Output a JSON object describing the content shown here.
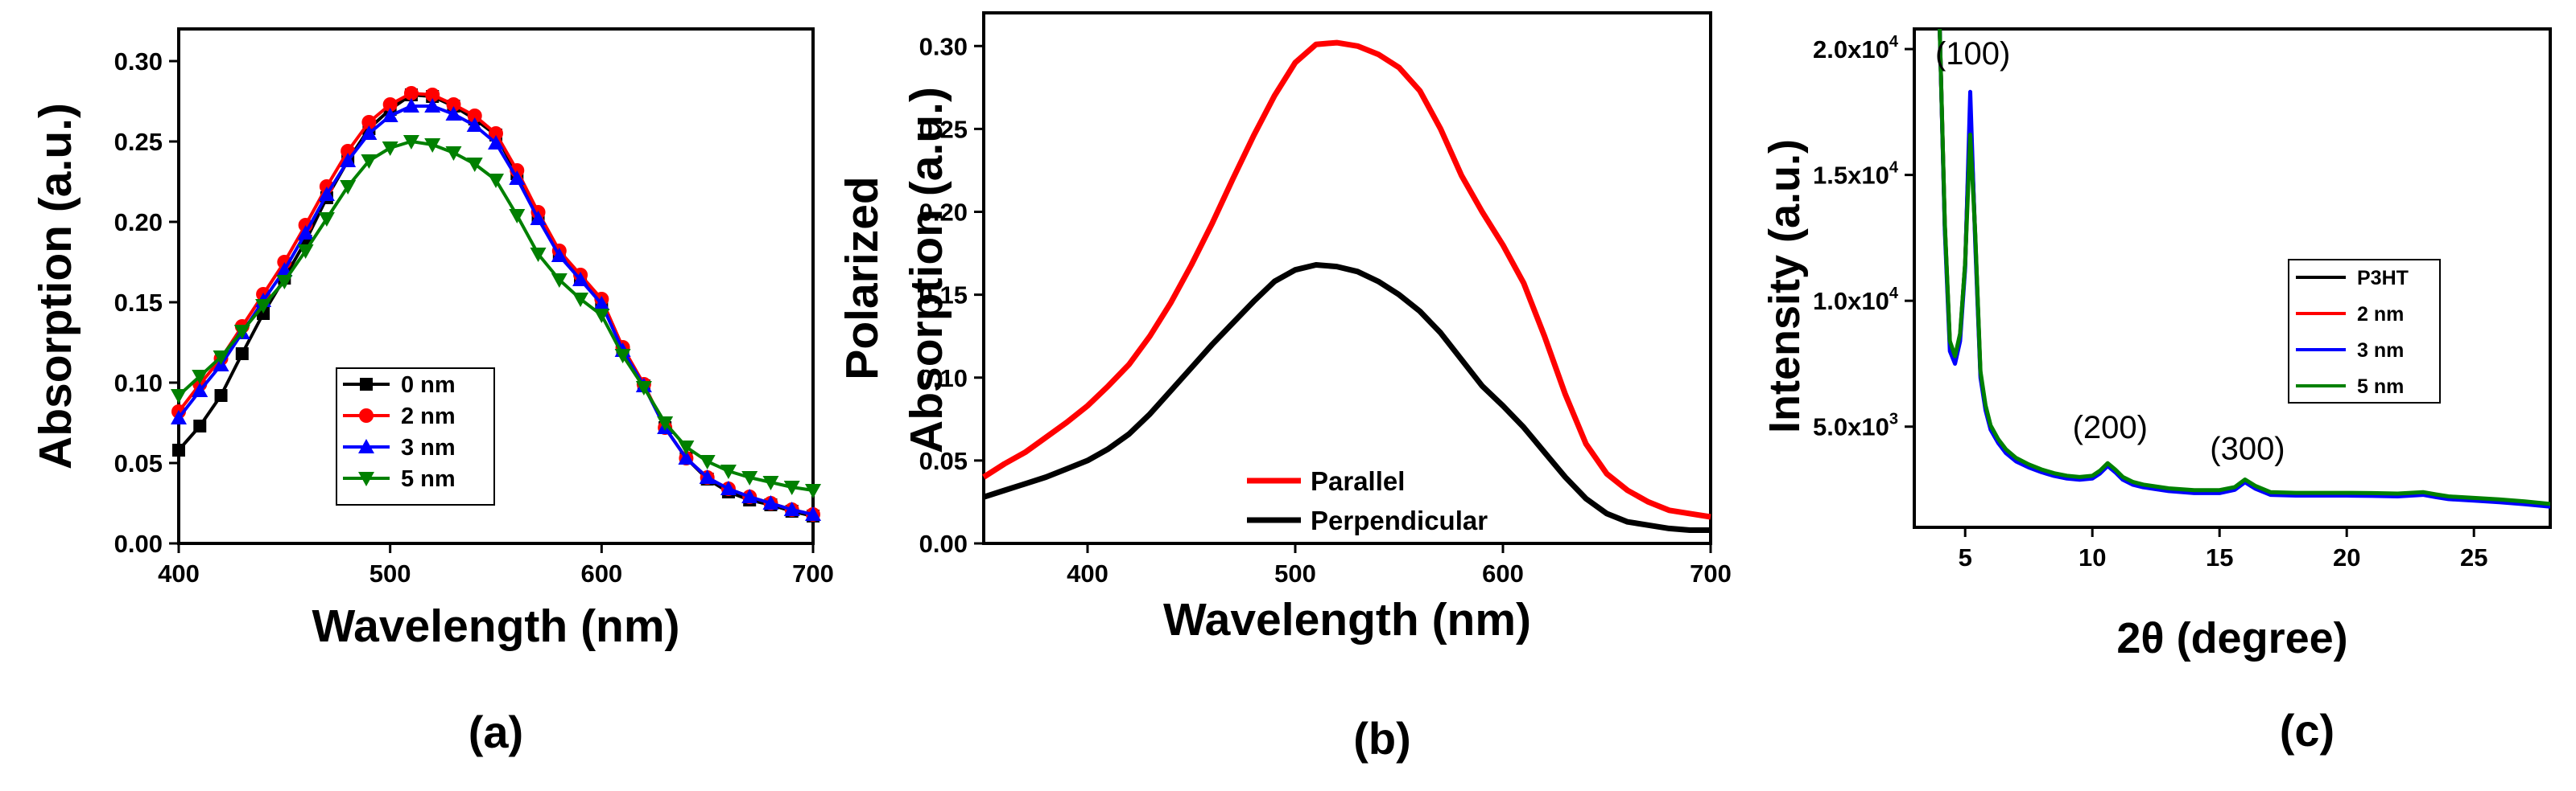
{
  "chart_data": [
    {
      "type": "line",
      "panel_label": "(a)",
      "xlabel": "Wavelength (nm)",
      "ylabel": "Absorption (a.u.)",
      "xlim": [
        400,
        700
      ],
      "ylim": [
        0,
        0.32
      ],
      "xticks": [
        400,
        500,
        600,
        700
      ],
      "xtick_labels": [
        "400",
        "500",
        "600",
        "700"
      ],
      "yticks": [
        0.0,
        0.05,
        0.1,
        0.15,
        0.2,
        0.25,
        0.3
      ],
      "ytick_labels": [
        "0.00",
        "0.05",
        "0.10",
        "0.15",
        "0.20",
        "0.25",
        "0.30"
      ],
      "legend_position": "lower-center",
      "x": [
        400,
        410,
        420,
        430,
        440,
        450,
        460,
        470,
        480,
        490,
        500,
        510,
        520,
        530,
        540,
        550,
        560,
        570,
        580,
        590,
        600,
        610,
        620,
        630,
        640,
        650,
        660,
        670,
        680,
        690,
        700
      ],
      "series": [
        {
          "name": "0 nm",
          "color": "#000000",
          "marker": "square",
          "values": [
            0.058,
            0.073,
            0.092,
            0.118,
            0.143,
            0.165,
            0.188,
            0.215,
            0.238,
            0.258,
            0.27,
            0.279,
            0.278,
            0.272,
            0.264,
            0.254,
            0.23,
            0.202,
            0.18,
            0.165,
            0.15,
            0.12,
            0.098,
            0.072,
            0.053,
            0.04,
            0.032,
            0.027,
            0.024,
            0.02,
            0.017
          ]
        },
        {
          "name": "2 nm",
          "color": "#ff0000",
          "marker": "circle",
          "values": [
            0.082,
            0.099,
            0.115,
            0.135,
            0.155,
            0.175,
            0.198,
            0.222,
            0.244,
            0.262,
            0.273,
            0.28,
            0.279,
            0.273,
            0.266,
            0.255,
            0.232,
            0.206,
            0.182,
            0.167,
            0.152,
            0.122,
            0.099,
            0.072,
            0.053,
            0.041,
            0.034,
            0.029,
            0.025,
            0.021,
            0.018
          ]
        },
        {
          "name": "3 nm",
          "color": "#0000ff",
          "marker": "triangle-up",
          "values": [
            0.078,
            0.095,
            0.111,
            0.131,
            0.151,
            0.17,
            0.193,
            0.217,
            0.238,
            0.255,
            0.266,
            0.272,
            0.272,
            0.267,
            0.26,
            0.249,
            0.227,
            0.202,
            0.179,
            0.164,
            0.149,
            0.12,
            0.098,
            0.072,
            0.053,
            0.041,
            0.034,
            0.029,
            0.025,
            0.021,
            0.018
          ]
        },
        {
          "name": "5 nm",
          "color": "#008000",
          "marker": "triangle-down",
          "values": [
            0.092,
            0.104,
            0.116,
            0.132,
            0.148,
            0.163,
            0.182,
            0.202,
            0.222,
            0.238,
            0.246,
            0.25,
            0.248,
            0.243,
            0.236,
            0.226,
            0.204,
            0.18,
            0.164,
            0.152,
            0.142,
            0.117,
            0.097,
            0.075,
            0.06,
            0.051,
            0.045,
            0.041,
            0.038,
            0.035,
            0.033
          ]
        }
      ]
    },
    {
      "type": "line",
      "panel_label": "(b)",
      "xlabel": "Wavelength (nm)",
      "ylabel_lines": [
        "Polarized",
        "Absorption (a.u.)"
      ],
      "xlim": [
        350,
        700
      ],
      "ylim": [
        0,
        0.32
      ],
      "xticks": [
        400,
        500,
        600,
        700
      ],
      "xtick_labels": [
        "400",
        "500",
        "600",
        "700"
      ],
      "yticks": [
        0.0,
        0.05,
        0.1,
        0.15,
        0.2,
        0.25,
        0.3
      ],
      "ytick_labels": [
        "0.00",
        "0.05",
        "0.10",
        "0.15",
        "0.20",
        "0.25",
        "0.30"
      ],
      "legend_position": "lower-center",
      "x": [
        350,
        360,
        370,
        380,
        390,
        400,
        410,
        420,
        430,
        440,
        450,
        460,
        470,
        480,
        490,
        500,
        510,
        520,
        530,
        540,
        550,
        560,
        570,
        580,
        590,
        600,
        610,
        620,
        630,
        640,
        650,
        660,
        670,
        680,
        690,
        700
      ],
      "series": [
        {
          "name": "Parallel",
          "color": "#ff0000",
          "values": [
            0.04,
            0.048,
            0.055,
            0.064,
            0.073,
            0.083,
            0.095,
            0.108,
            0.125,
            0.145,
            0.168,
            0.193,
            0.22,
            0.246,
            0.27,
            0.29,
            0.301,
            0.302,
            0.3,
            0.295,
            0.287,
            0.273,
            0.25,
            0.222,
            0.2,
            0.18,
            0.157,
            0.125,
            0.09,
            0.06,
            0.042,
            0.032,
            0.025,
            0.02,
            0.018,
            0.016
          ]
        },
        {
          "name": "Perpendicular",
          "color": "#000000",
          "values": [
            0.028,
            0.032,
            0.036,
            0.04,
            0.045,
            0.05,
            0.057,
            0.066,
            0.078,
            0.092,
            0.106,
            0.12,
            0.133,
            0.146,
            0.158,
            0.165,
            0.168,
            0.167,
            0.164,
            0.158,
            0.15,
            0.14,
            0.127,
            0.111,
            0.095,
            0.083,
            0.07,
            0.055,
            0.04,
            0.027,
            0.018,
            0.013,
            0.011,
            0.009,
            0.008,
            0.008
          ]
        }
      ]
    },
    {
      "type": "line",
      "panel_label": "(c)",
      "xlabel": "2θ (degree)",
      "ylabel": "Intensity (a.u.)",
      "xlim": [
        3,
        28
      ],
      "ylim": [
        1000,
        20800
      ],
      "xticks": [
        5,
        10,
        15,
        20,
        25
      ],
      "xtick_labels": [
        "5",
        "10",
        "15",
        "20",
        "25"
      ],
      "yticks": [
        5000,
        10000,
        15000,
        20000
      ],
      "ytick_labels": [
        [
          "5.0x10",
          "3"
        ],
        [
          "1.0x10",
          "4"
        ],
        [
          "1.5x10",
          "4"
        ],
        [
          "2.0x10",
          "4"
        ]
      ],
      "legend_position": "right",
      "annotations": [
        {
          "text": "(100)",
          "x": 5.3,
          "y": 19400
        },
        {
          "text": "(200)",
          "x": 10.7,
          "y": 4550
        },
        {
          "text": "(300)",
          "x": 16.1,
          "y": 3700
        }
      ],
      "x": [
        4.0,
        4.2,
        4.4,
        4.6,
        4.8,
        5.0,
        5.2,
        5.4,
        5.6,
        5.8,
        6.0,
        6.3,
        6.6,
        7.0,
        7.5,
        8.0,
        8.5,
        9.0,
        9.5,
        10.0,
        10.3,
        10.6,
        10.9,
        11.2,
        11.6,
        12.0,
        13.0,
        14.0,
        15.0,
        15.6,
        16.0,
        16.4,
        17.0,
        18.0,
        19.0,
        20.0,
        21.0,
        22.0,
        23.0,
        23.5,
        24.0,
        25.0,
        26.0,
        27.0,
        28.0
      ],
      "series": [
        {
          "name": "P3HT",
          "color": "#000000",
          "values": [
            20800,
            13000,
            8300,
            7700,
            8600,
            11500,
            17600,
            12500,
            7100,
            5800,
            5000,
            4450,
            4050,
            3700,
            3450,
            3250,
            3100,
            3000,
            2950,
            3000,
            3200,
            3500,
            3250,
            2950,
            2750,
            2650,
            2500,
            2420,
            2420,
            2550,
            2850,
            2600,
            2350,
            2320,
            2320,
            2320,
            2310,
            2290,
            2350,
            2260,
            2180,
            2120,
            2060,
            1980,
            1880
          ]
        },
        {
          "name": "2 nm",
          "color": "#ff0000",
          "values": [
            20800,
            13000,
            8200,
            7650,
            8550,
            11400,
            17600,
            12400,
            7050,
            5750,
            4960,
            4420,
            4020,
            3680,
            3430,
            3240,
            3090,
            2990,
            2940,
            2990,
            3190,
            3490,
            3240,
            2940,
            2740,
            2640,
            2490,
            2410,
            2410,
            2540,
            2840,
            2590,
            2340,
            2310,
            2310,
            2310,
            2300,
            2280,
            2340,
            2250,
            2170,
            2110,
            2050,
            1970,
            1870
          ]
        },
        {
          "name": "3 nm",
          "color": "#0000ff",
          "values": [
            20800,
            12800,
            8000,
            7500,
            8400,
            11300,
            18300,
            12200,
            6950,
            5650,
            4880,
            4350,
            3950,
            3620,
            3380,
            3190,
            3040,
            2940,
            2890,
            2940,
            3140,
            3440,
            3190,
            2890,
            2690,
            2590,
            2440,
            2360,
            2360,
            2490,
            2790,
            2540,
            2290,
            2260,
            2260,
            2260,
            2250,
            2230,
            2290,
            2200,
            2120,
            2060,
            2000,
            1920,
            1820
          ]
        },
        {
          "name": "5 nm",
          "color": "#008000",
          "values": [
            20800,
            13100,
            8400,
            7800,
            8700,
            11500,
            16600,
            12600,
            7200,
            5850,
            5050,
            4500,
            4100,
            3760,
            3500,
            3300,
            3150,
            3050,
            3000,
            3050,
            3250,
            3550,
            3300,
            3000,
            2800,
            2700,
            2550,
            2480,
            2480,
            2600,
            2900,
            2650,
            2400,
            2370,
            2370,
            2370,
            2360,
            2340,
            2400,
            2310,
            2230,
            2170,
            2110,
            2030,
            1930
          ]
        }
      ]
    }
  ]
}
